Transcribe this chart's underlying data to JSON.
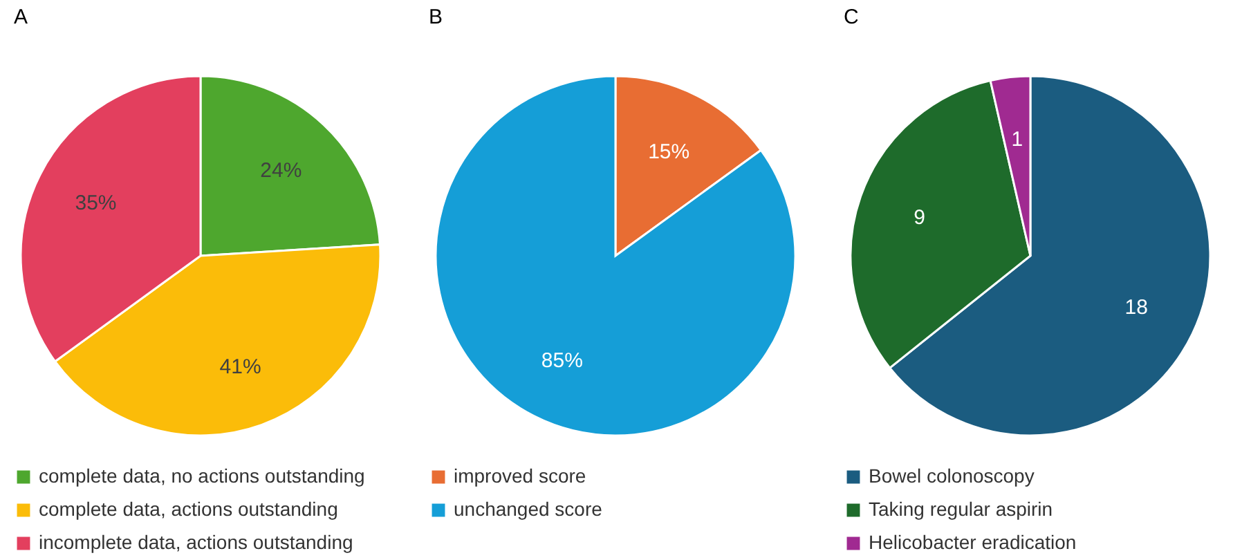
{
  "chart_data": [
    {
      "type": "pie",
      "title": "A",
      "categories": [
        "complete data, no actions outstanding",
        "complete data, actions outstanding",
        "incomplete data, actions outstanding"
      ],
      "values": [
        24,
        41,
        35
      ],
      "colors": [
        "#4ea72e",
        "#fbbc09",
        "#e33f5e"
      ],
      "value_labels": [
        "24%",
        "41%",
        "35%"
      ],
      "legend": "bottom"
    },
    {
      "type": "pie",
      "title": "B",
      "categories": [
        "improved score",
        "unchanged score"
      ],
      "values": [
        15,
        85
      ],
      "colors": [
        "#e86d33",
        "#159ed7"
      ],
      "value_labels": [
        "15%",
        "85%"
      ],
      "legend": "bottom"
    },
    {
      "type": "pie",
      "title": "C",
      "categories": [
        "Bowel colonoscopy",
        "Taking regular aspirin",
        "Helicobacter eradication"
      ],
      "values": [
        18,
        9,
        1
      ],
      "colors": [
        "#1b5c80",
        "#1e6b2b",
        "#a02a91"
      ],
      "data_labels": true,
      "legend": "bottom"
    }
  ]
}
